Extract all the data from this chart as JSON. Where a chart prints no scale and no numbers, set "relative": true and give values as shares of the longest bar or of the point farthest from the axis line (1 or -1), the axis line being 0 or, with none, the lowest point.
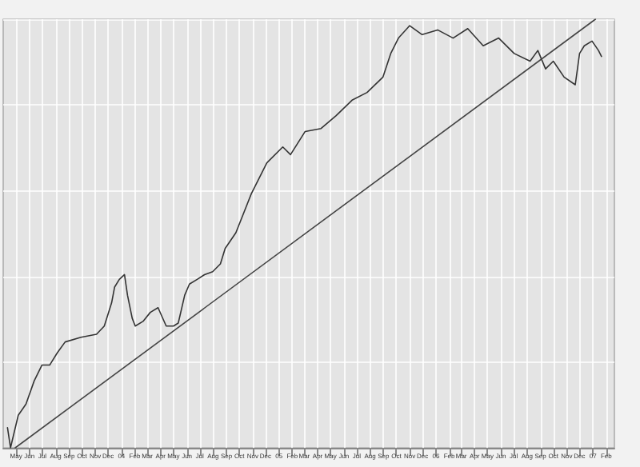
{
  "chart_data": {
    "type": "line",
    "relative": true,
    "grid": true,
    "marker": "none",
    "line_style": "solid",
    "tick_labels": "x",
    "xlim": [
      "2003-04-01",
      "2007-02-20"
    ],
    "xticks": [
      {
        "value": "2003-05-01",
        "label": "May"
      },
      {
        "value": "2003-06-01",
        "label": "Jun"
      },
      {
        "value": "2003-07-01",
        "label": "Jul"
      },
      {
        "value": "2003-08-01",
        "label": "Aug"
      },
      {
        "value": "2003-09-01",
        "label": "Sep"
      },
      {
        "value": "2003-10-01",
        "label": "Oct"
      },
      {
        "value": "2003-11-01",
        "label": "Nov"
      },
      {
        "value": "2003-12-01",
        "label": "Dec"
      },
      {
        "value": "2004-01-01",
        "label": "04"
      },
      {
        "value": "2004-02-01",
        "label": "Feb"
      },
      {
        "value": "2004-03-01",
        "label": "Mar"
      },
      {
        "value": "2004-04-01",
        "label": "Apr"
      },
      {
        "value": "2004-05-01",
        "label": "May"
      },
      {
        "value": "2004-06-01",
        "label": "Jun"
      },
      {
        "value": "2004-07-01",
        "label": "Jul"
      },
      {
        "value": "2004-08-01",
        "label": "Aug"
      },
      {
        "value": "2004-09-01",
        "label": "Sep"
      },
      {
        "value": "2004-10-01",
        "label": "Oct"
      },
      {
        "value": "2004-11-01",
        "label": "Nov"
      },
      {
        "value": "2004-12-01",
        "label": "Dec"
      },
      {
        "value": "2005-01-01",
        "label": "05"
      },
      {
        "value": "2005-02-01",
        "label": "Feb"
      },
      {
        "value": "2005-03-01",
        "label": "Mar"
      },
      {
        "value": "2005-04-01",
        "label": "Apr"
      },
      {
        "value": "2005-05-01",
        "label": "May"
      },
      {
        "value": "2005-06-01",
        "label": "Jun"
      },
      {
        "value": "2005-07-01",
        "label": "Jul"
      },
      {
        "value": "2005-08-01",
        "label": "Aug"
      },
      {
        "value": "2005-09-01",
        "label": "Sep"
      },
      {
        "value": "2005-10-01",
        "label": "Oct"
      },
      {
        "value": "2005-11-01",
        "label": "Nov"
      },
      {
        "value": "2005-12-01",
        "label": "Dec"
      },
      {
        "value": "2006-01-01",
        "label": "06"
      },
      {
        "value": "2006-02-01",
        "label": "Feb"
      },
      {
        "value": "2006-03-01",
        "label": "Mar"
      },
      {
        "value": "2006-04-01",
        "label": "Apr"
      },
      {
        "value": "2006-05-01",
        "label": "May"
      },
      {
        "value": "2006-06-01",
        "label": "Jun"
      },
      {
        "value": "2006-07-01",
        "label": "Jul"
      },
      {
        "value": "2006-08-01",
        "label": "Aug"
      },
      {
        "value": "2006-09-01",
        "label": "Sep"
      },
      {
        "value": "2006-10-01",
        "label": "Oct"
      },
      {
        "value": "2006-11-01",
        "label": "Nov"
      },
      {
        "value": "2006-12-01",
        "label": "Dec"
      },
      {
        "value": "2007-01-01",
        "label": "07"
      },
      {
        "value": "2007-02-01",
        "label": "Feb"
      }
    ],
    "series": [
      {
        "color": "#333333",
        "x": [
          "2003-04-11",
          "2003-04-18",
          "2003-05-06",
          "2003-05-24",
          "2003-06-12",
          "2003-06-30",
          "2003-07-18",
          "2003-08-05",
          "2003-08-23",
          "2003-09-29",
          "2003-11-04",
          "2003-11-22",
          "2003-12-09",
          "2003-12-16",
          "2003-12-27",
          "2004-01-08",
          "2004-01-15",
          "2004-01-26",
          "2004-02-02",
          "2004-02-20",
          "2004-03-08",
          "2004-03-26",
          "2004-04-14",
          "2004-05-01",
          "2004-05-12",
          "2004-05-27",
          "2004-06-07",
          "2004-06-25",
          "2004-07-12",
          "2004-07-31",
          "2004-08-18",
          "2004-08-29",
          "2004-09-23",
          "2004-10-29",
          "2004-12-04",
          "2005-01-10",
          "2005-01-28",
          "2005-03-03",
          "2005-04-09",
          "2005-05-14",
          "2005-06-20",
          "2005-07-25",
          "2005-08-31",
          "2005-09-18",
          "2005-10-06",
          "2005-11-01",
          "2005-11-30",
          "2006-01-05",
          "2006-02-10",
          "2006-03-16",
          "2006-04-21",
          "2006-05-27",
          "2006-07-02",
          "2006-08-08",
          "2006-08-26",
          "2006-09-13",
          "2006-10-01",
          "2006-10-26",
          "2006-11-21",
          "2006-12-01",
          "2006-12-12",
          "2006-12-30",
          "2007-01-14",
          "2007-01-21"
        ],
        "values": [
          0.047,
          0,
          0.076,
          0.102,
          0.156,
          0.193,
          0.193,
          0.222,
          0.247,
          0.258,
          0.265,
          0.284,
          0.338,
          0.375,
          0.393,
          0.404,
          0.356,
          0.302,
          0.284,
          0.295,
          0.316,
          0.327,
          0.284,
          0.284,
          0.291,
          0.356,
          0.382,
          0.393,
          0.404,
          0.411,
          0.429,
          0.465,
          0.502,
          0.593,
          0.665,
          0.702,
          0.684,
          0.738,
          0.745,
          0.775,
          0.811,
          0.829,
          0.865,
          0.92,
          0.956,
          0.985,
          0.964,
          0.975,
          0.956,
          0.978,
          0.938,
          0.956,
          0.92,
          0.902,
          0.927,
          0.884,
          0.902,
          0.865,
          0.847,
          0.92,
          0.938,
          0.949,
          0.927,
          0.913
        ]
      },
      {
        "type": "line",
        "color": "#444444",
        "x": [
          "2003-04-29",
          "2007-01-07"
        ],
        "values": [
          0,
          1
        ]
      }
    ]
  }
}
